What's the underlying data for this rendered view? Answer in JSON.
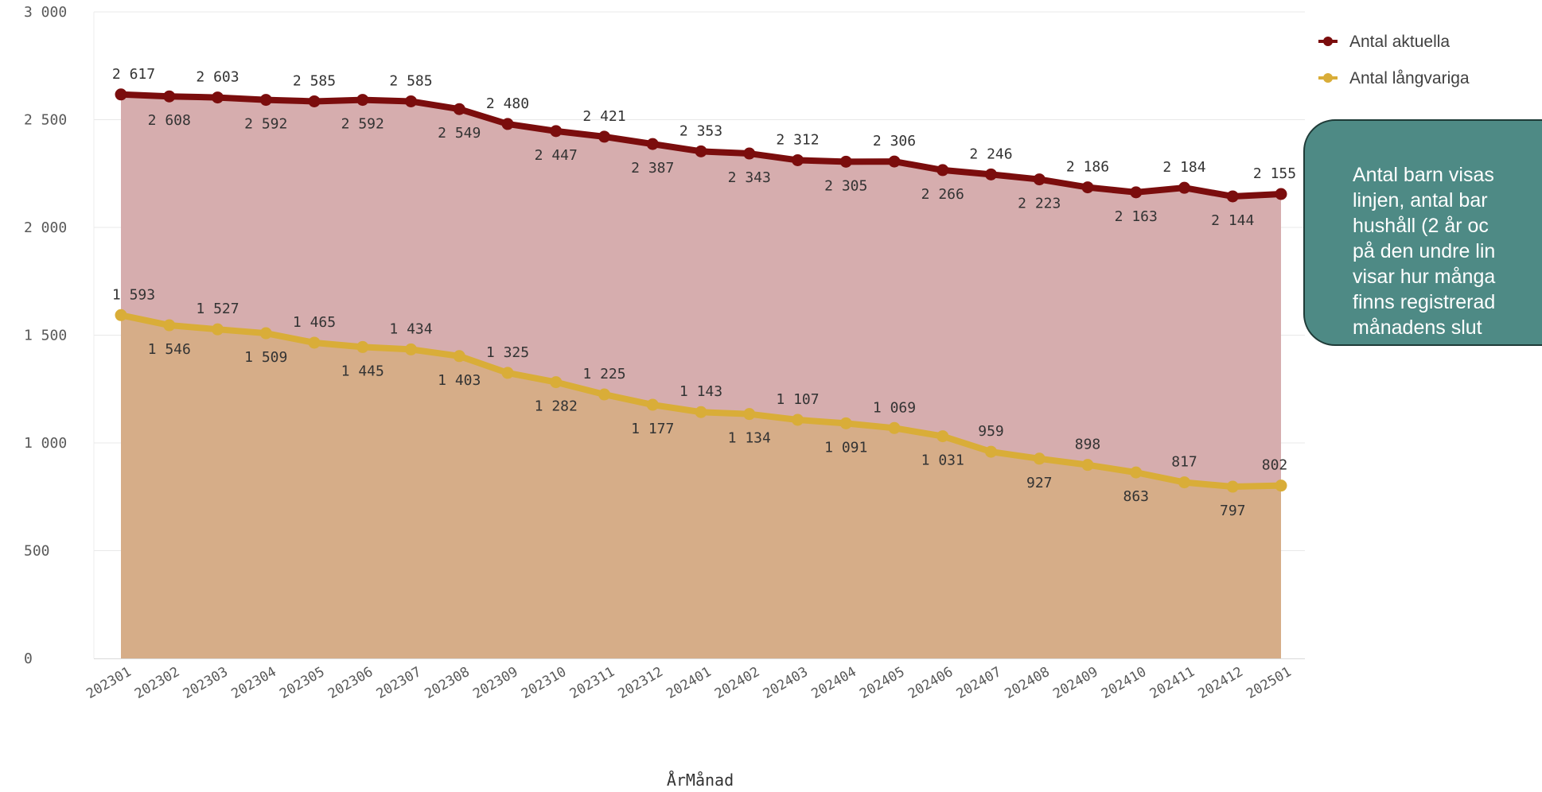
{
  "chart_data": {
    "type": "area",
    "categories": [
      "202301",
      "202302",
      "202303",
      "202304",
      "202305",
      "202306",
      "202307",
      "202308",
      "202309",
      "202310",
      "202311",
      "202312",
      "202401",
      "202402",
      "202403",
      "202404",
      "202405",
      "202406",
      "202407",
      "202408",
      "202409",
      "202410",
      "202411",
      "202412",
      "202501"
    ],
    "series": [
      {
        "name": "Antal aktuella",
        "color": "#7b0d0d",
        "fill": "#d6adae",
        "values": [
          2617,
          2608,
          2603,
          2592,
          2585,
          2592,
          2585,
          2549,
          2480,
          2447,
          2421,
          2387,
          2353,
          2343,
          2312,
          2305,
          2306,
          2266,
          2246,
          2223,
          2186,
          2163,
          2184,
          2144,
          2155
        ],
        "labels": [
          "2 617",
          "2 608",
          "2 603",
          "2 592",
          "2 585",
          "2 592",
          "2 585",
          "2 549",
          "2 480",
          "2 447",
          "2 421",
          "2 387",
          "2 353",
          "2 343",
          "2 312",
          "2 305",
          "2 306",
          "2 266",
          "2 246",
          "2 223",
          "2 186",
          "2 163",
          "2 184",
          "2 144",
          "2 155"
        ]
      },
      {
        "name": "Antal långvariga",
        "color": "#d9ad38",
        "fill": "#d6ad88",
        "values": [
          1593,
          1546,
          1527,
          1509,
          1465,
          1445,
          1434,
          1403,
          1325,
          1282,
          1225,
          1177,
          1143,
          1134,
          1107,
          1091,
          1069,
          1031,
          959,
          927,
          898,
          863,
          817,
          797,
          802
        ],
        "labels": [
          "1 593",
          "1 546",
          "1 527",
          "1 509",
          "1 465",
          "1 445",
          "1 434",
          "1 403",
          "1 325",
          "1 282",
          "1 225",
          "1 177",
          "1 143",
          "1 134",
          "1 107",
          "1 091",
          "1 069",
          "1 031",
          "959",
          "927",
          "898",
          "863",
          "817",
          "797",
          "802"
        ]
      }
    ],
    "y_ticks": [
      0,
      500,
      1000,
      1500,
      2000,
      2500,
      3000
    ],
    "y_tick_labels": [
      "0",
      "500",
      "1 000",
      "1 500",
      "2 000",
      "2 500",
      "3 000"
    ],
    "ylim": [
      0,
      3000
    ],
    "xlabel": "ÅrMånad",
    "ylabel": "",
    "grid": true,
    "legend_position": "top-right"
  },
  "callout": {
    "lines": [
      "Antal barn visas",
      "linjen, antal bar",
      "hushåll (2 år oc",
      "på den undre lin",
      "visar hur många",
      "finns registrerad",
      "månadens slut"
    ]
  }
}
